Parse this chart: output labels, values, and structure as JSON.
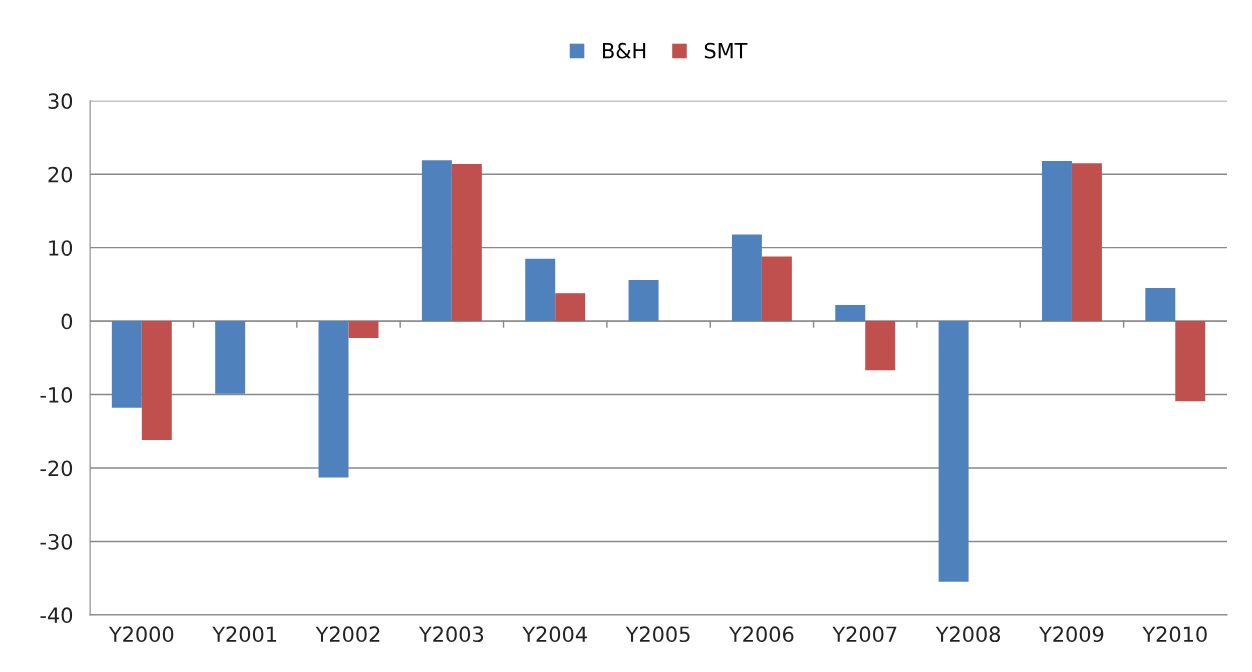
{
  "chart_data": {
    "type": "bar",
    "categories": [
      "Y2000",
      "Y2001",
      "Y2002",
      "Y2003",
      "Y2004",
      "Y2005",
      "Y2006",
      "Y2007",
      "Y2008",
      "Y2009",
      "Y2010"
    ],
    "series": [
      {
        "name": "B&H",
        "color": "#4f81bd",
        "values": [
          -11.8,
          -9.9,
          -21.3,
          21.9,
          8.5,
          5.6,
          11.8,
          2.2,
          -35.5,
          21.8,
          4.5
        ]
      },
      {
        "name": "SMT",
        "color": "#c0504d",
        "values": [
          -16.2,
          null,
          -2.3,
          21.4,
          3.8,
          null,
          8.8,
          -6.7,
          null,
          21.5,
          -10.9
        ]
      }
    ],
    "ylim": [
      -40,
      30
    ],
    "yticks": [
      -40,
      -30,
      -20,
      -10,
      0,
      10,
      20,
      30
    ],
    "grid": "y",
    "legend": "top"
  }
}
